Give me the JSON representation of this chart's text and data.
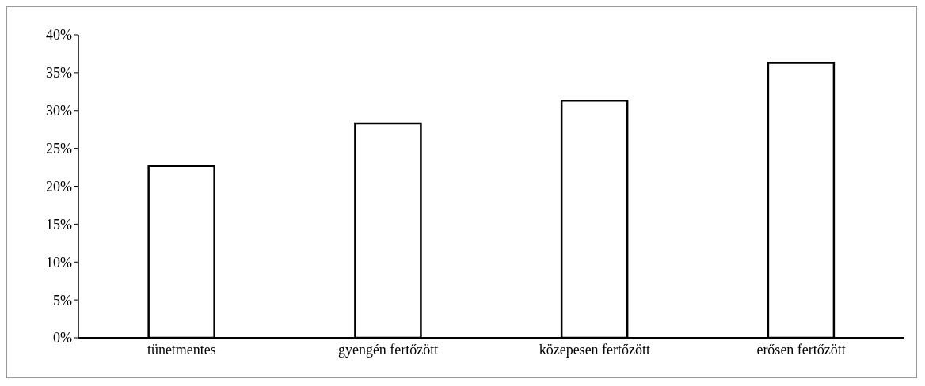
{
  "chart_data": {
    "type": "bar",
    "categories": [
      "tünetmentes",
      "gyengén fertőzött",
      "közepesen fertőzött",
      "erősen fertőzött"
    ],
    "values": [
      22.7,
      28.3,
      31.3,
      36.3
    ],
    "color": "#ffffff",
    "ylim": [
      0,
      40
    ],
    "yticks": [
      {
        "value": 0,
        "label": "0%"
      },
      {
        "value": 5,
        "label": "5%"
      },
      {
        "value": 10,
        "label": "10%"
      },
      {
        "value": 15,
        "label": "15%"
      },
      {
        "value": 20,
        "label": "20%"
      },
      {
        "value": 25,
        "label": "25%"
      },
      {
        "value": 30,
        "label": "30%"
      },
      {
        "value": 35,
        "label": "35%"
      },
      {
        "value": 40,
        "label": "40%"
      }
    ],
    "grid": false,
    "legend": false
  }
}
